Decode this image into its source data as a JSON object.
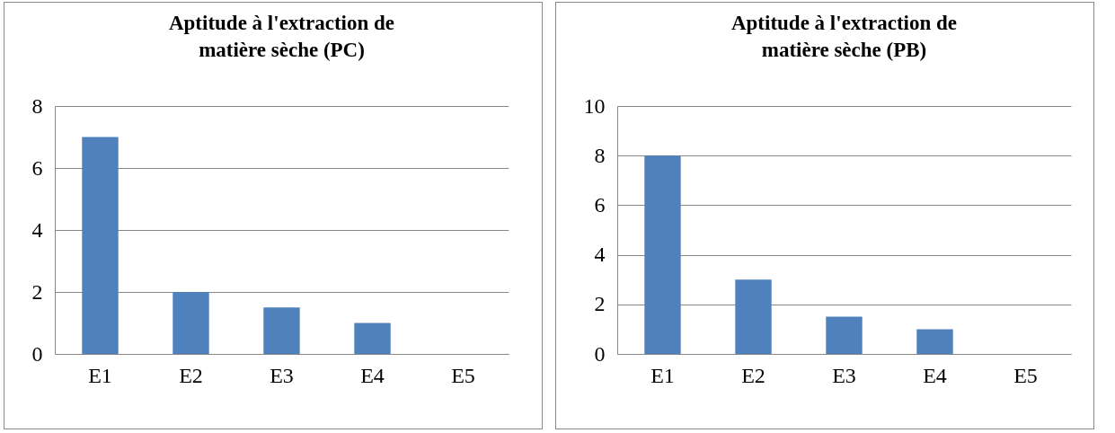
{
  "chart_data": [
    {
      "type": "bar",
      "title": "Aptitude à l'extraction de matière sèche (PC)",
      "categories": [
        "E1",
        "E2",
        "E3",
        "E4",
        "E5"
      ],
      "values": [
        7,
        2,
        1.5,
        1,
        0
      ],
      "color": "#4f81bd",
      "ylim": [
        0,
        8
      ],
      "yticks": [
        0,
        2,
        4,
        6,
        8
      ],
      "grid": "y"
    },
    {
      "type": "bar",
      "title": "Aptitude à l'extraction de matière sèche (PB)",
      "categories": [
        "E1",
        "E2",
        "E3",
        "E4",
        "E5"
      ],
      "values": [
        8,
        3,
        1.5,
        1,
        0
      ],
      "color": "#4f81bd",
      "ylim": [
        0,
        10
      ],
      "yticks": [
        0,
        2,
        4,
        6,
        8,
        10
      ],
      "grid": "y"
    }
  ]
}
